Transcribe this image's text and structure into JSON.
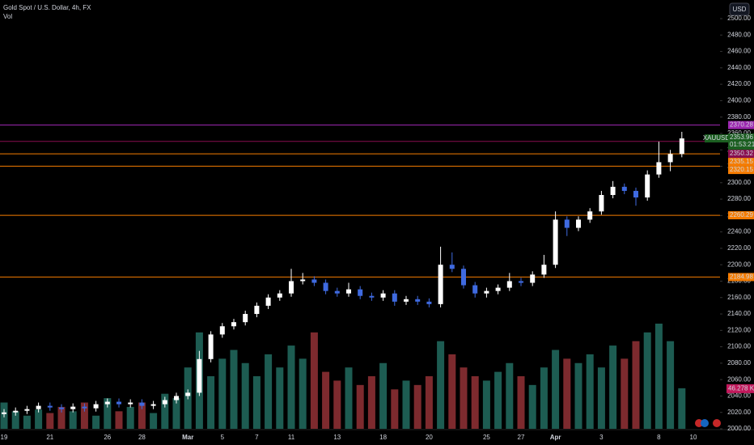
{
  "chart_data": {
    "type": "candlestick",
    "title": "Gold Spot / U.S. Dollar, 4h, FX",
    "volume_title": "Vol",
    "currency_button": "USD",
    "symbol": "XAUUSD",
    "countdown": "01:53:21",
    "volume_label": "46.278 K",
    "up_color": "#ffffff",
    "down_color": "#3f6ae0",
    "volume_up_color": "#1d5c52",
    "volume_down_color": "#7d2a2e",
    "last_color": "#1b5e20",
    "categories": [
      "19",
      null,
      null,
      null,
      "21",
      null,
      null,
      null,
      null,
      "26",
      null,
      null,
      "28",
      null,
      null,
      null,
      "Mar",
      null,
      null,
      "5",
      null,
      null,
      "7",
      null,
      null,
      "11",
      null,
      null,
      null,
      "13",
      null,
      null,
      null,
      "18",
      null,
      null,
      null,
      "20",
      null,
      null,
      null,
      null,
      "25",
      null,
      null,
      "27",
      null,
      null,
      "Apr",
      null,
      null,
      null,
      "3",
      null,
      null,
      null,
      null,
      "8",
      null,
      null,
      "10"
    ],
    "open": [
      2018,
      2020,
      2022,
      2024,
      2028,
      2026,
      2024,
      2027,
      2025,
      2030,
      2033,
      2030,
      2032,
      2028,
      2030,
      2035,
      2040,
      2044,
      2085,
      2115,
      2125,
      2130,
      2140,
      2150,
      2160,
      2165,
      2180,
      2182,
      2178,
      2168,
      2165,
      2170,
      2162,
      2160,
      2165,
      2155,
      2158,
      2155,
      2152,
      2200,
      2195,
      2175,
      2165,
      2168,
      2172,
      2180,
      2178,
      2188,
      2200,
      2255,
      2245,
      2255,
      2265,
      2285,
      2295,
      2290,
      2282,
      2310,
      2325,
      2335,
      null
    ],
    "high": [
      2024,
      2026,
      2028,
      2032,
      2032,
      2030,
      2031,
      2031,
      2034,
      2037,
      2037,
      2036,
      2036,
      2034,
      2039,
      2044,
      2048,
      2095,
      2119,
      2129,
      2134,
      2144,
      2154,
      2164,
      2169,
      2195,
      2190,
      2186,
      2182,
      2172,
      2178,
      2174,
      2166,
      2169,
      2169,
      2162,
      2162,
      2159,
      2222,
      2215,
      2199,
      2179,
      2172,
      2176,
      2190,
      2184,
      2192,
      2212,
      2265,
      2259,
      2259,
      2269,
      2290,
      2302,
      2299,
      2294,
      2315,
      2350,
      2340,
      2362,
      null
    ],
    "low": [
      2014,
      2016,
      2018,
      2020,
      2022,
      2020,
      2020,
      2021,
      2021,
      2026,
      2026,
      2026,
      2024,
      2024,
      2026,
      2031,
      2036,
      2040,
      2081,
      2111,
      2121,
      2126,
      2136,
      2146,
      2156,
      2161,
      2176,
      2174,
      2164,
      2161,
      2161,
      2158,
      2156,
      2156,
      2150,
      2151,
      2151,
      2148,
      2148,
      2191,
      2171,
      2160,
      2160,
      2164,
      2168,
      2174,
      2174,
      2184,
      2196,
      2235,
      2241,
      2251,
      2261,
      2281,
      2286,
      2272,
      2278,
      2306,
      2314,
      2331,
      null
    ],
    "close": [
      2020,
      2022,
      2024,
      2028,
      2026,
      2024,
      2027,
      2025,
      2030,
      2033,
      2030,
      2032,
      2028,
      2030,
      2035,
      2040,
      2044,
      2085,
      2115,
      2125,
      2130,
      2140,
      2150,
      2160,
      2165,
      2180,
      2182,
      2178,
      2168,
      2165,
      2170,
      2162,
      2160,
      2165,
      2155,
      2158,
      2155,
      2152,
      2200,
      2195,
      2175,
      2165,
      2168,
      2172,
      2180,
      2178,
      2188,
      2200,
      2255,
      2245,
      2255,
      2265,
      2285,
      2295,
      2290,
      2282,
      2310,
      2325,
      2335,
      2353.96,
      null
    ],
    "volume": [
      30,
      20,
      15,
      22,
      18,
      25,
      20,
      30,
      15,
      35,
      20,
      25,
      30,
      18,
      40,
      35,
      70,
      110,
      60,
      80,
      90,
      75,
      60,
      85,
      70,
      95,
      80,
      110,
      65,
      55,
      70,
      50,
      60,
      75,
      45,
      55,
      50,
      60,
      100,
      85,
      70,
      60,
      55,
      65,
      75,
      60,
      50,
      70,
      90,
      80,
      75,
      85,
      70,
      95,
      80,
      100,
      110,
      120,
      100,
      46.278,
      null
    ],
    "levels": [
      {
        "value": 2370.28,
        "color": "#9c27b0"
      },
      {
        "value": 2350.32,
        "color": "#880e4f"
      },
      {
        "value": 2335.15,
        "color": "#f57c00"
      },
      {
        "value": 2320.15,
        "color": "#f57c00"
      },
      {
        "value": 2260.29,
        "color": "#f57c00"
      },
      {
        "value": 2184.98,
        "color": "#f57c00"
      }
    ],
    "ylim": [
      2000,
      2500
    ],
    "yticks": [
      {
        "value": 2000,
        "label": "2000.00"
      },
      {
        "value": 2020,
        "label": "2020.00"
      },
      {
        "value": 2040,
        "label": "2040.00"
      },
      {
        "value": 2060,
        "label": "2060.00"
      },
      {
        "value": 2080,
        "label": "2080.00"
      },
      {
        "value": 2100,
        "label": "2100.00"
      },
      {
        "value": 2120,
        "label": "2120.00"
      },
      {
        "value": 2140,
        "label": "2140.00"
      },
      {
        "value": 2160,
        "label": "2160.00"
      },
      {
        "value": 2180,
        "label": "2180.00"
      },
      {
        "value": 2200,
        "label": "2200.00"
      },
      {
        "value": 2220,
        "label": "2220.00"
      },
      {
        "value": 2240,
        "label": "2240.00"
      },
      {
        "value": 2260,
        "label": "2260.00"
      },
      {
        "value": 2280,
        "label": "2280.00"
      },
      {
        "value": 2300,
        "label": "2300.00"
      },
      {
        "value": 2320,
        "label": "2320.00"
      },
      {
        "value": 2340,
        "label": "2340.00"
      },
      {
        "value": 2360,
        "label": "2360.00"
      },
      {
        "value": 2380,
        "label": "2380.00"
      },
      {
        "value": 2400,
        "label": "2400.00"
      },
      {
        "value": 2420,
        "label": "2420.00"
      },
      {
        "value": 2440,
        "label": "2440.00"
      },
      {
        "value": 2460,
        "label": "2460.00"
      },
      {
        "value": 2480,
        "label": "2480.00"
      },
      {
        "value": 2500,
        "label": "2500.00"
      }
    ]
  }
}
